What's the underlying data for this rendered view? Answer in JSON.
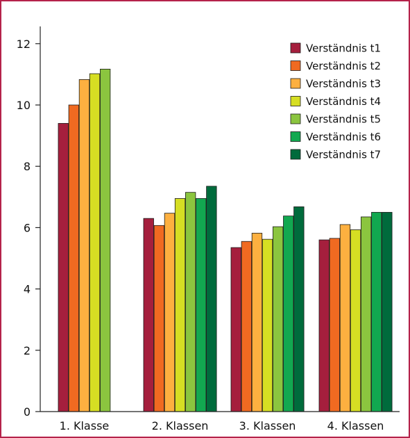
{
  "chart_data": {
    "type": "bar",
    "categories": [
      "1. Klasse",
      "2. Klassen",
      "3. Klassen",
      "4. Klassen"
    ],
    "series": [
      {
        "name": "Verständnis t1",
        "color": "#a51f3d",
        "values": [
          9.4,
          6.3,
          5.35,
          5.6
        ]
      },
      {
        "name": "Verständnis t2",
        "color": "#f06a21",
        "values": [
          10.0,
          6.07,
          5.55,
          5.65
        ]
      },
      {
        "name": "Verständnis t3",
        "color": "#fdb040",
        "values": [
          10.83,
          6.47,
          5.82,
          6.1
        ]
      },
      {
        "name": "Verständnis t4",
        "color": "#d6de23",
        "values": [
          11.02,
          6.95,
          5.62,
          5.93
        ]
      },
      {
        "name": "Verständnis t5",
        "color": "#8bc53f",
        "values": [
          11.17,
          7.15,
          6.03,
          6.35
        ]
      },
      {
        "name": "Verständnis t6",
        "color": "#12a850",
        "values": [
          null,
          6.95,
          6.38,
          6.5
        ]
      },
      {
        "name": "Verständnis t7",
        "color": "#006b3c",
        "values": [
          null,
          7.35,
          6.68,
          6.5
        ]
      }
    ],
    "ylim": [
      0,
      12.5
    ],
    "yticks": [
      0,
      2,
      4,
      6,
      8,
      10,
      12
    ],
    "ytick_labels": [
      "0",
      "2",
      "4",
      "6",
      "8",
      "10",
      "12"
    ],
    "title": "",
    "xlabel": "",
    "ylabel": "",
    "legend": "top-right",
    "grid": false
  }
}
